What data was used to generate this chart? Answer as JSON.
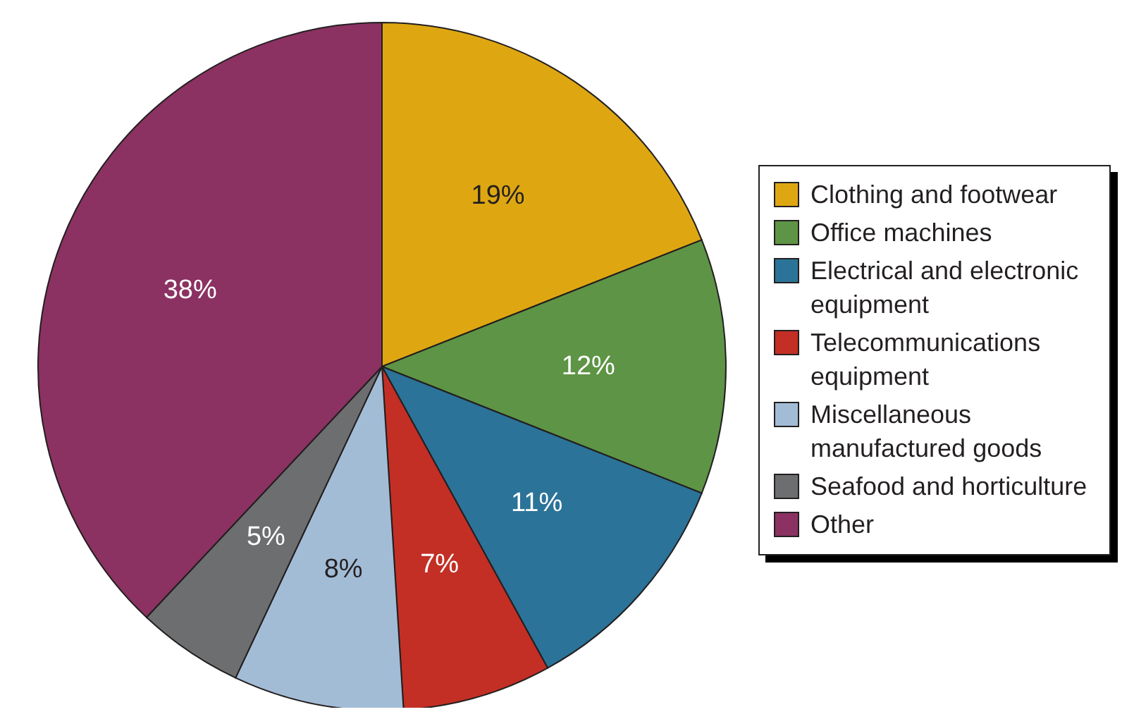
{
  "chart_data": {
    "type": "pie",
    "categories": [
      "Clothing and footwear",
      "Office machines",
      "Electrical and electronic equipment",
      "Telecommunications equipment",
      "Miscellaneous manufactured goods",
      "Seafood and horticulture",
      "Other"
    ],
    "values": [
      19,
      12,
      11,
      7,
      8,
      5,
      38
    ],
    "value_labels": [
      "19%",
      "12%",
      "11%",
      "7%",
      "8%",
      "5%",
      "38%"
    ],
    "colors": [
      "#dea712",
      "#5e9445",
      "#2b7398",
      "#c32f25",
      "#a3bcd6",
      "#6d6e70",
      "#8b3262"
    ],
    "legend": "right"
  }
}
